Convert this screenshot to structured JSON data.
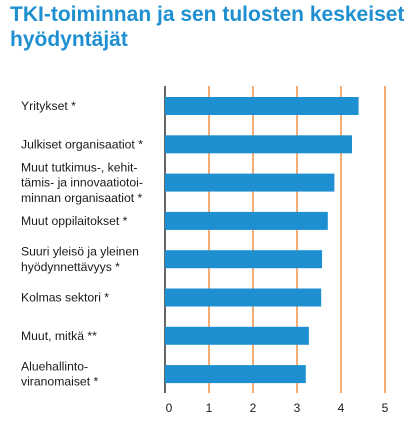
{
  "chart_data": {
    "type": "bar",
    "orientation": "horizontal",
    "title_lines": [
      "TKI-toiminnan ja sen tulosten keskeiset",
      "hyödyntäjät"
    ],
    "categories": [
      [
        "Yritykset *"
      ],
      [
        "Julkiset organisaatiot *"
      ],
      [
        "Muut tutkimus-, kehit-",
        "tämis- ja innovaatiotoi-",
        "minnan organisaatiot *"
      ],
      [
        "Muut oppilaitokset *"
      ],
      [
        "Suuri yleisö ja yleinen",
        "hyödynnettävyys *"
      ],
      [
        "Kolmas sektori *"
      ],
      [
        "Muut, mitkä **"
      ],
      [
        "Aluehallinto-",
        "viranomaiset *"
      ]
    ],
    "values": [
      4.4,
      4.25,
      3.85,
      3.7,
      3.57,
      3.55,
      3.27,
      3.2
    ],
    "xlim": [
      0,
      5
    ],
    "xticks": [
      "0",
      "1",
      "2",
      "3",
      "4",
      "5"
    ],
    "grid": "vertical",
    "colors": {
      "bar": "#1e8fd0",
      "grid": "#f08a3c",
      "title": "#1e8fd0",
      "axis": "#000000"
    }
  }
}
